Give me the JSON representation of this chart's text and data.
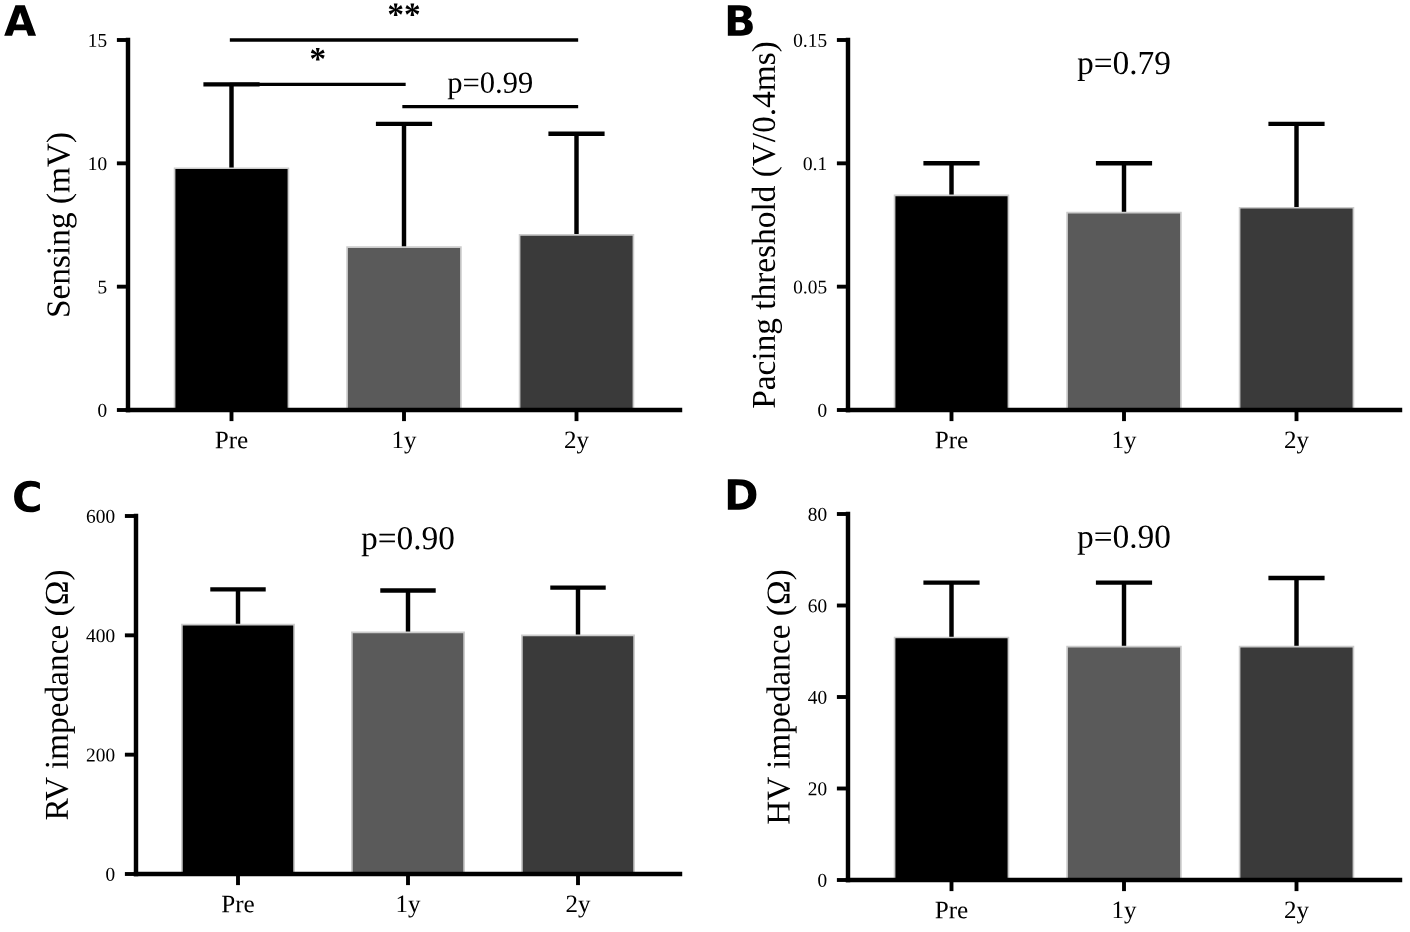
{
  "chart_data": [
    {
      "type": "bar",
      "title": "A",
      "ylabel": "Sensing (mV)",
      "categories": [
        "Pre",
        "1y",
        "2y"
      ],
      "values": [
        9.8,
        6.6,
        7.1
      ],
      "colors": [
        "#000000",
        "#5a5a5a",
        "#3a3a3a"
      ],
      "errors": [
        [
          9.8,
          13.2
        ],
        [
          6.6,
          11.6
        ],
        [
          7.1,
          11.2
        ]
      ],
      "ylim": [
        0,
        15
      ],
      "yticks": [
        0,
        5,
        10,
        15
      ],
      "grid": false,
      "legend": false,
      "annotations": [
        "*",
        "**",
        "p=0.99"
      ]
    },
    {
      "type": "bar",
      "title": "B",
      "ylabel": "Pacing threshold (V/0.4ms)",
      "categories": [
        "Pre",
        "1y",
        "2y"
      ],
      "values": [
        0.087,
        0.08,
        0.082
      ],
      "colors": [
        "#000000",
        "#5a5a5a",
        "#3a3a3a"
      ],
      "errors": [
        [
          0.087,
          0.1
        ],
        [
          0.08,
          0.1
        ],
        [
          0.082,
          0.116
        ]
      ],
      "ylim": [
        0,
        0.15
      ],
      "yticks": [
        0,
        0.05,
        0.1,
        0.15
      ],
      "grid": false,
      "legend": false,
      "annotations": [
        "p=0.79"
      ]
    },
    {
      "type": "bar",
      "title": "C",
      "ylabel": "RV impedance (Ω)",
      "categories": [
        "Pre",
        "1y",
        "2y"
      ],
      "values": [
        418,
        405,
        400
      ],
      "colors": [
        "#000000",
        "#5a5a5a",
        "#3a3a3a"
      ],
      "errors": [
        [
          418,
          477
        ],
        [
          405,
          475
        ],
        [
          400,
          480
        ]
      ],
      "ylim": [
        0,
        600
      ],
      "yticks": [
        0,
        200,
        400,
        600
      ],
      "grid": false,
      "legend": false,
      "annotations": [
        "p=0.90"
      ]
    },
    {
      "type": "bar",
      "title": "D",
      "ylabel": "HV impedance (Ω)",
      "categories": [
        "Pre",
        "1y",
        "2y"
      ],
      "values": [
        53,
        51,
        51
      ],
      "colors": [
        "#000000",
        "#5a5a5a",
        "#3a3a3a"
      ],
      "errors": [
        [
          53,
          65
        ],
        [
          51,
          65
        ],
        [
          51,
          66
        ]
      ],
      "ylim": [
        0,
        80
      ],
      "yticks": [
        0,
        20,
        40,
        60,
        80
      ],
      "grid": false,
      "legend": false,
      "annotations": [
        "p=0.90"
      ]
    }
  ]
}
